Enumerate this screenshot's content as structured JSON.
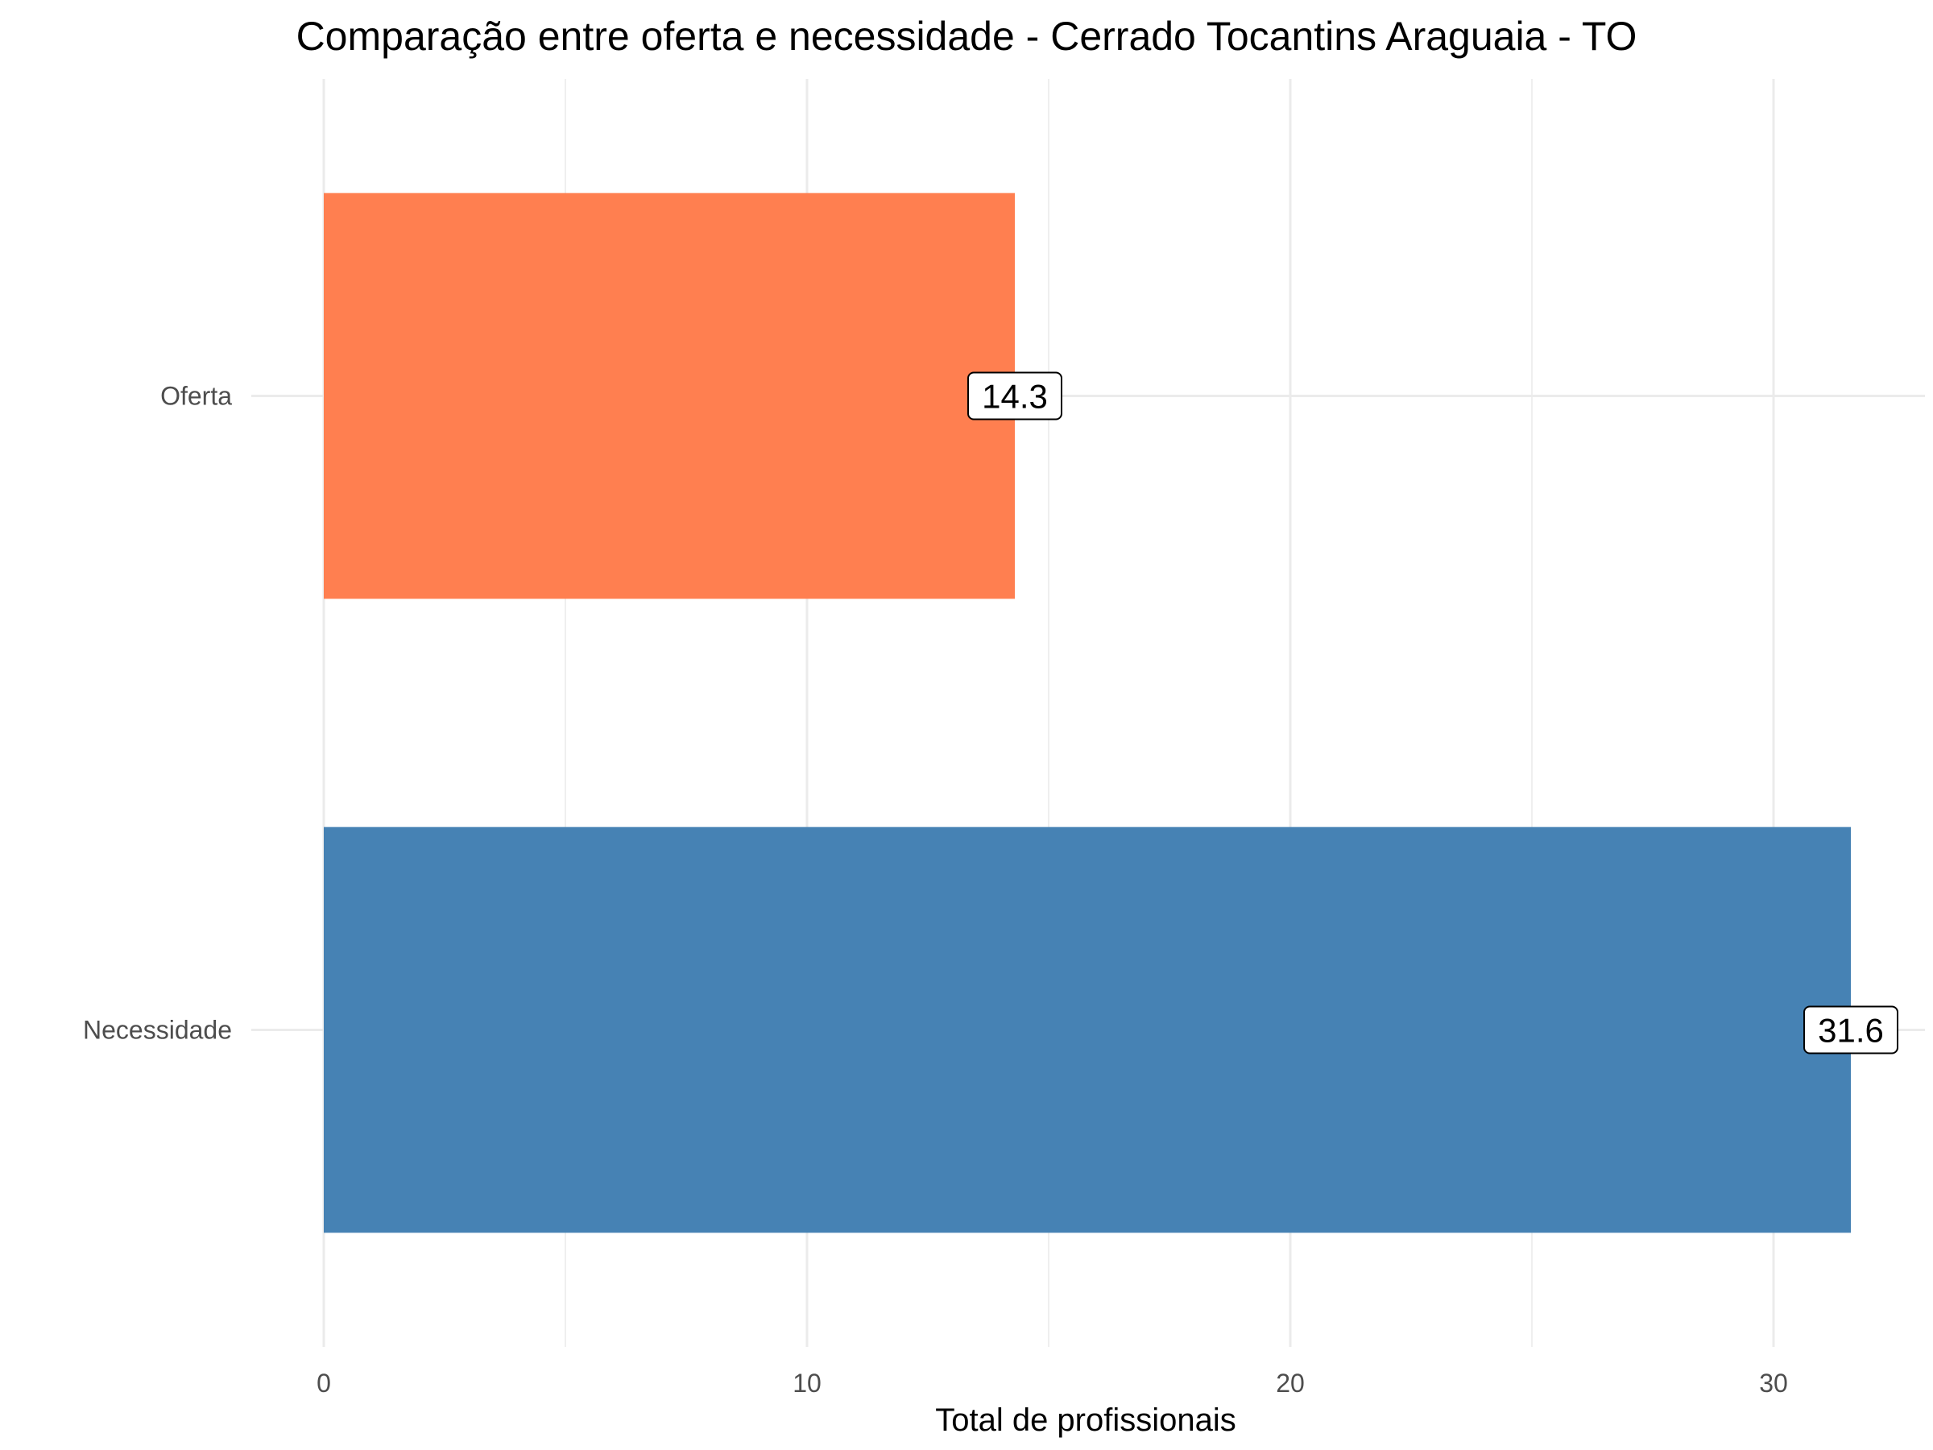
{
  "chart_data": {
    "type": "bar",
    "orientation": "horizontal",
    "title": "Comparação entre oferta e necessidade - Cerrado Tocantins Araguaia - TO",
    "xlabel": "Total de profissionais",
    "ylabel": "",
    "categories": [
      "Oferta",
      "Necessidade"
    ],
    "values": [
      14.3,
      31.6
    ],
    "data_labels": [
      "14.3",
      "31.6"
    ],
    "colors": [
      "#ff7f50",
      "#4682b4"
    ],
    "xlim": [
      0,
      33
    ],
    "xticks": [
      0,
      10,
      20,
      30
    ],
    "xtick_labels": [
      "0",
      "10",
      "20",
      "30"
    ],
    "grid": true,
    "legend": "none"
  }
}
